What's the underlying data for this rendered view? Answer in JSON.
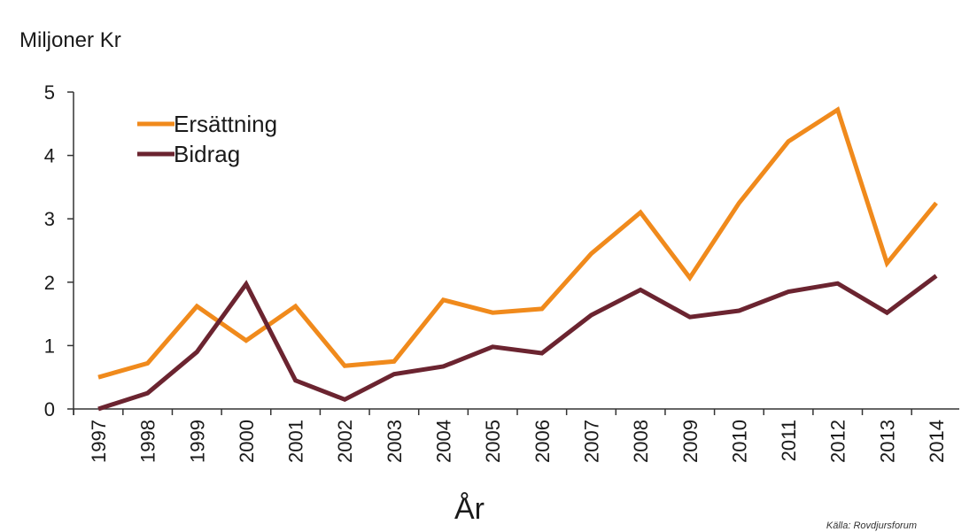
{
  "chart_data": {
    "type": "line",
    "ylabel": "Miljoner Kr",
    "xlabel": "År",
    "source": "Källa: Rovdjursforum",
    "ylim": [
      0,
      5
    ],
    "yticks": [
      "0",
      "1",
      "2",
      "3",
      "4",
      "5"
    ],
    "categories": [
      "1997",
      "1998",
      "1999",
      "2000",
      "2001",
      "2002",
      "2003",
      "2004",
      "2005",
      "2006",
      "2007",
      "2008",
      "2009",
      "2010",
      "2011",
      "2012",
      "2013",
      "2014"
    ],
    "series": [
      {
        "name": "Ersättning",
        "color": "#f08a1c",
        "values": [
          0.5,
          0.72,
          1.62,
          1.08,
          1.62,
          0.68,
          0.75,
          1.72,
          1.52,
          1.58,
          2.45,
          3.1,
          2.07,
          3.25,
          4.22,
          4.72,
          2.3,
          3.25
        ]
      },
      {
        "name": "Bidrag",
        "color": "#6b2430",
        "values": [
          0.0,
          0.25,
          0.9,
          1.97,
          0.45,
          0.15,
          0.55,
          0.67,
          0.98,
          0.88,
          1.48,
          1.88,
          1.45,
          1.55,
          1.85,
          1.98,
          1.52,
          2.1
        ]
      }
    ],
    "legend": "top-left",
    "grid": false
  }
}
